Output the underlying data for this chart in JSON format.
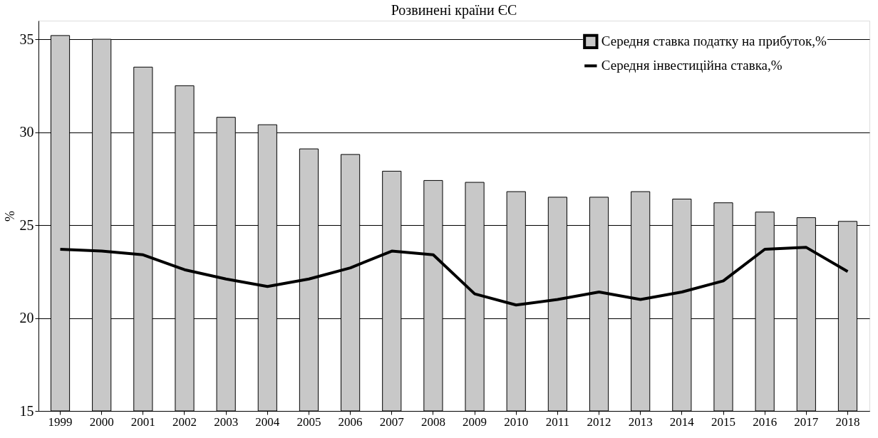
{
  "chart_data": {
    "type": "bar",
    "title": "Розвинені країни ЄС",
    "ylabel": "%",
    "categories": [
      "1999",
      "2000",
      "2001",
      "2002",
      "2003",
      "2004",
      "2005",
      "2006",
      "2007",
      "2008",
      "2009",
      "2010",
      "2011",
      "2012",
      "2013",
      "2014",
      "2015",
      "2016",
      "2017",
      "2018"
    ],
    "series": [
      {
        "name": "Середня ставка податку на прибуток,%",
        "color": "#c8c8c8",
        "values": [
          35.2,
          35.0,
          33.5,
          32.5,
          30.8,
          30.4,
          29.1,
          28.8,
          27.9,
          27.4,
          27.3,
          26.8,
          26.5,
          26.5,
          26.8,
          26.4,
          26.2,
          25.7,
          25.4,
          25.2
        ]
      },
      {
        "name": "Середня інвестиційна ставка,%",
        "type": "line",
        "color": "#000000",
        "values": [
          23.7,
          23.6,
          23.4,
          22.6,
          22.1,
          21.7,
          22.1,
          22.7,
          23.6,
          23.4,
          21.3,
          20.7,
          21.0,
          21.4,
          21.0,
          21.4,
          22.0,
          23.7,
          23.8,
          22.5
        ]
      }
    ],
    "ylim": [
      15,
      36
    ],
    "yticks": [
      15,
      20,
      25,
      30,
      35
    ],
    "grid": "y",
    "legend": "top right",
    "marker": "none",
    "line_style": "solid"
  }
}
